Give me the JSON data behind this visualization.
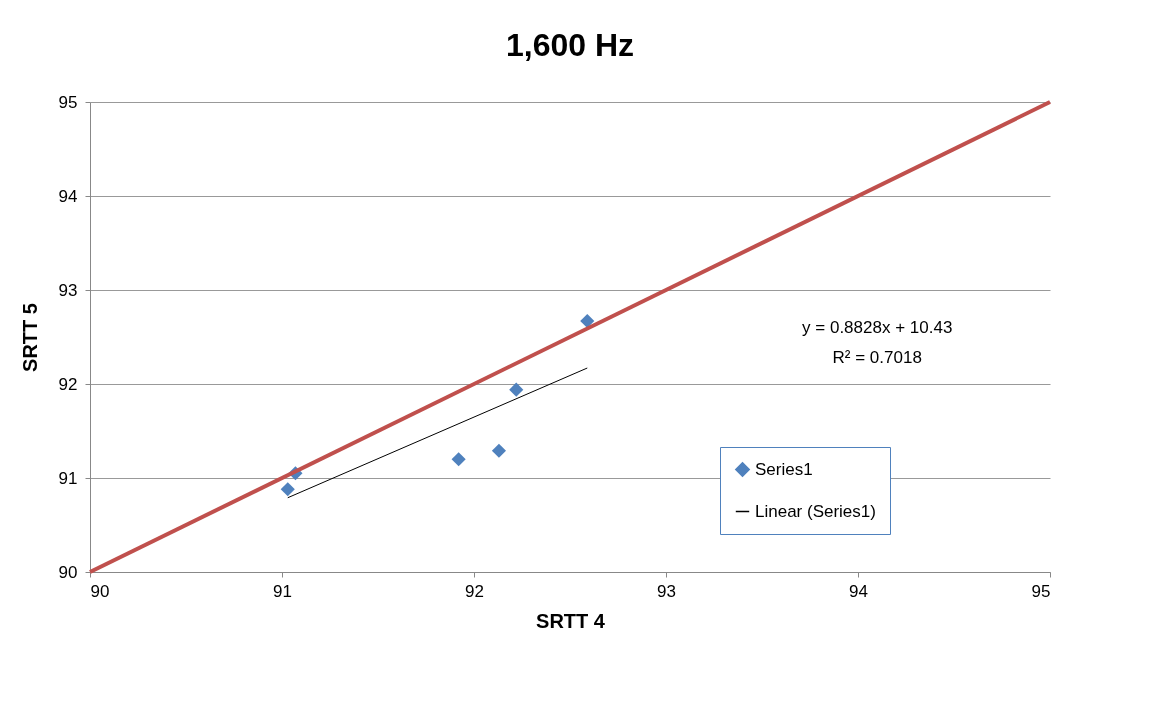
{
  "chart_data": {
    "type": "scatter",
    "title": "1,600 Hz",
    "xlabel": "SRTT 4",
    "ylabel": "SRTT 5",
    "xlim": [
      90,
      95
    ],
    "xticks": [
      90,
      91,
      92,
      93,
      94,
      95
    ],
    "ylim": [
      90,
      95
    ],
    "yticks": [
      90,
      91,
      92,
      93,
      94,
      95
    ],
    "grid": "y",
    "legend": "bottom right",
    "annotations": [
      "y = 0.8828x + 10.43",
      "R² = 0.7018"
    ],
    "series": [
      {
        "name": "Series1",
        "color": "#4f81bd",
        "marker": "diamond",
        "x": [
          91.03,
          91.07,
          91.92,
          92.13,
          92.22,
          92.59
        ],
        "values": [
          90.88,
          91.05,
          91.2,
          91.29,
          91.94,
          92.67
        ]
      },
      {
        "type": "line",
        "name": "Linear (Series1)",
        "color": "#000000",
        "marker": "none",
        "x": [
          91.03,
          92.59
        ],
        "values": [
          90.79,
          92.17
        ]
      },
      {
        "type": "line",
        "color": "#c0504d",
        "marker": "none",
        "x": [
          90,
          95
        ],
        "values": [
          90,
          95
        ]
      }
    ]
  }
}
